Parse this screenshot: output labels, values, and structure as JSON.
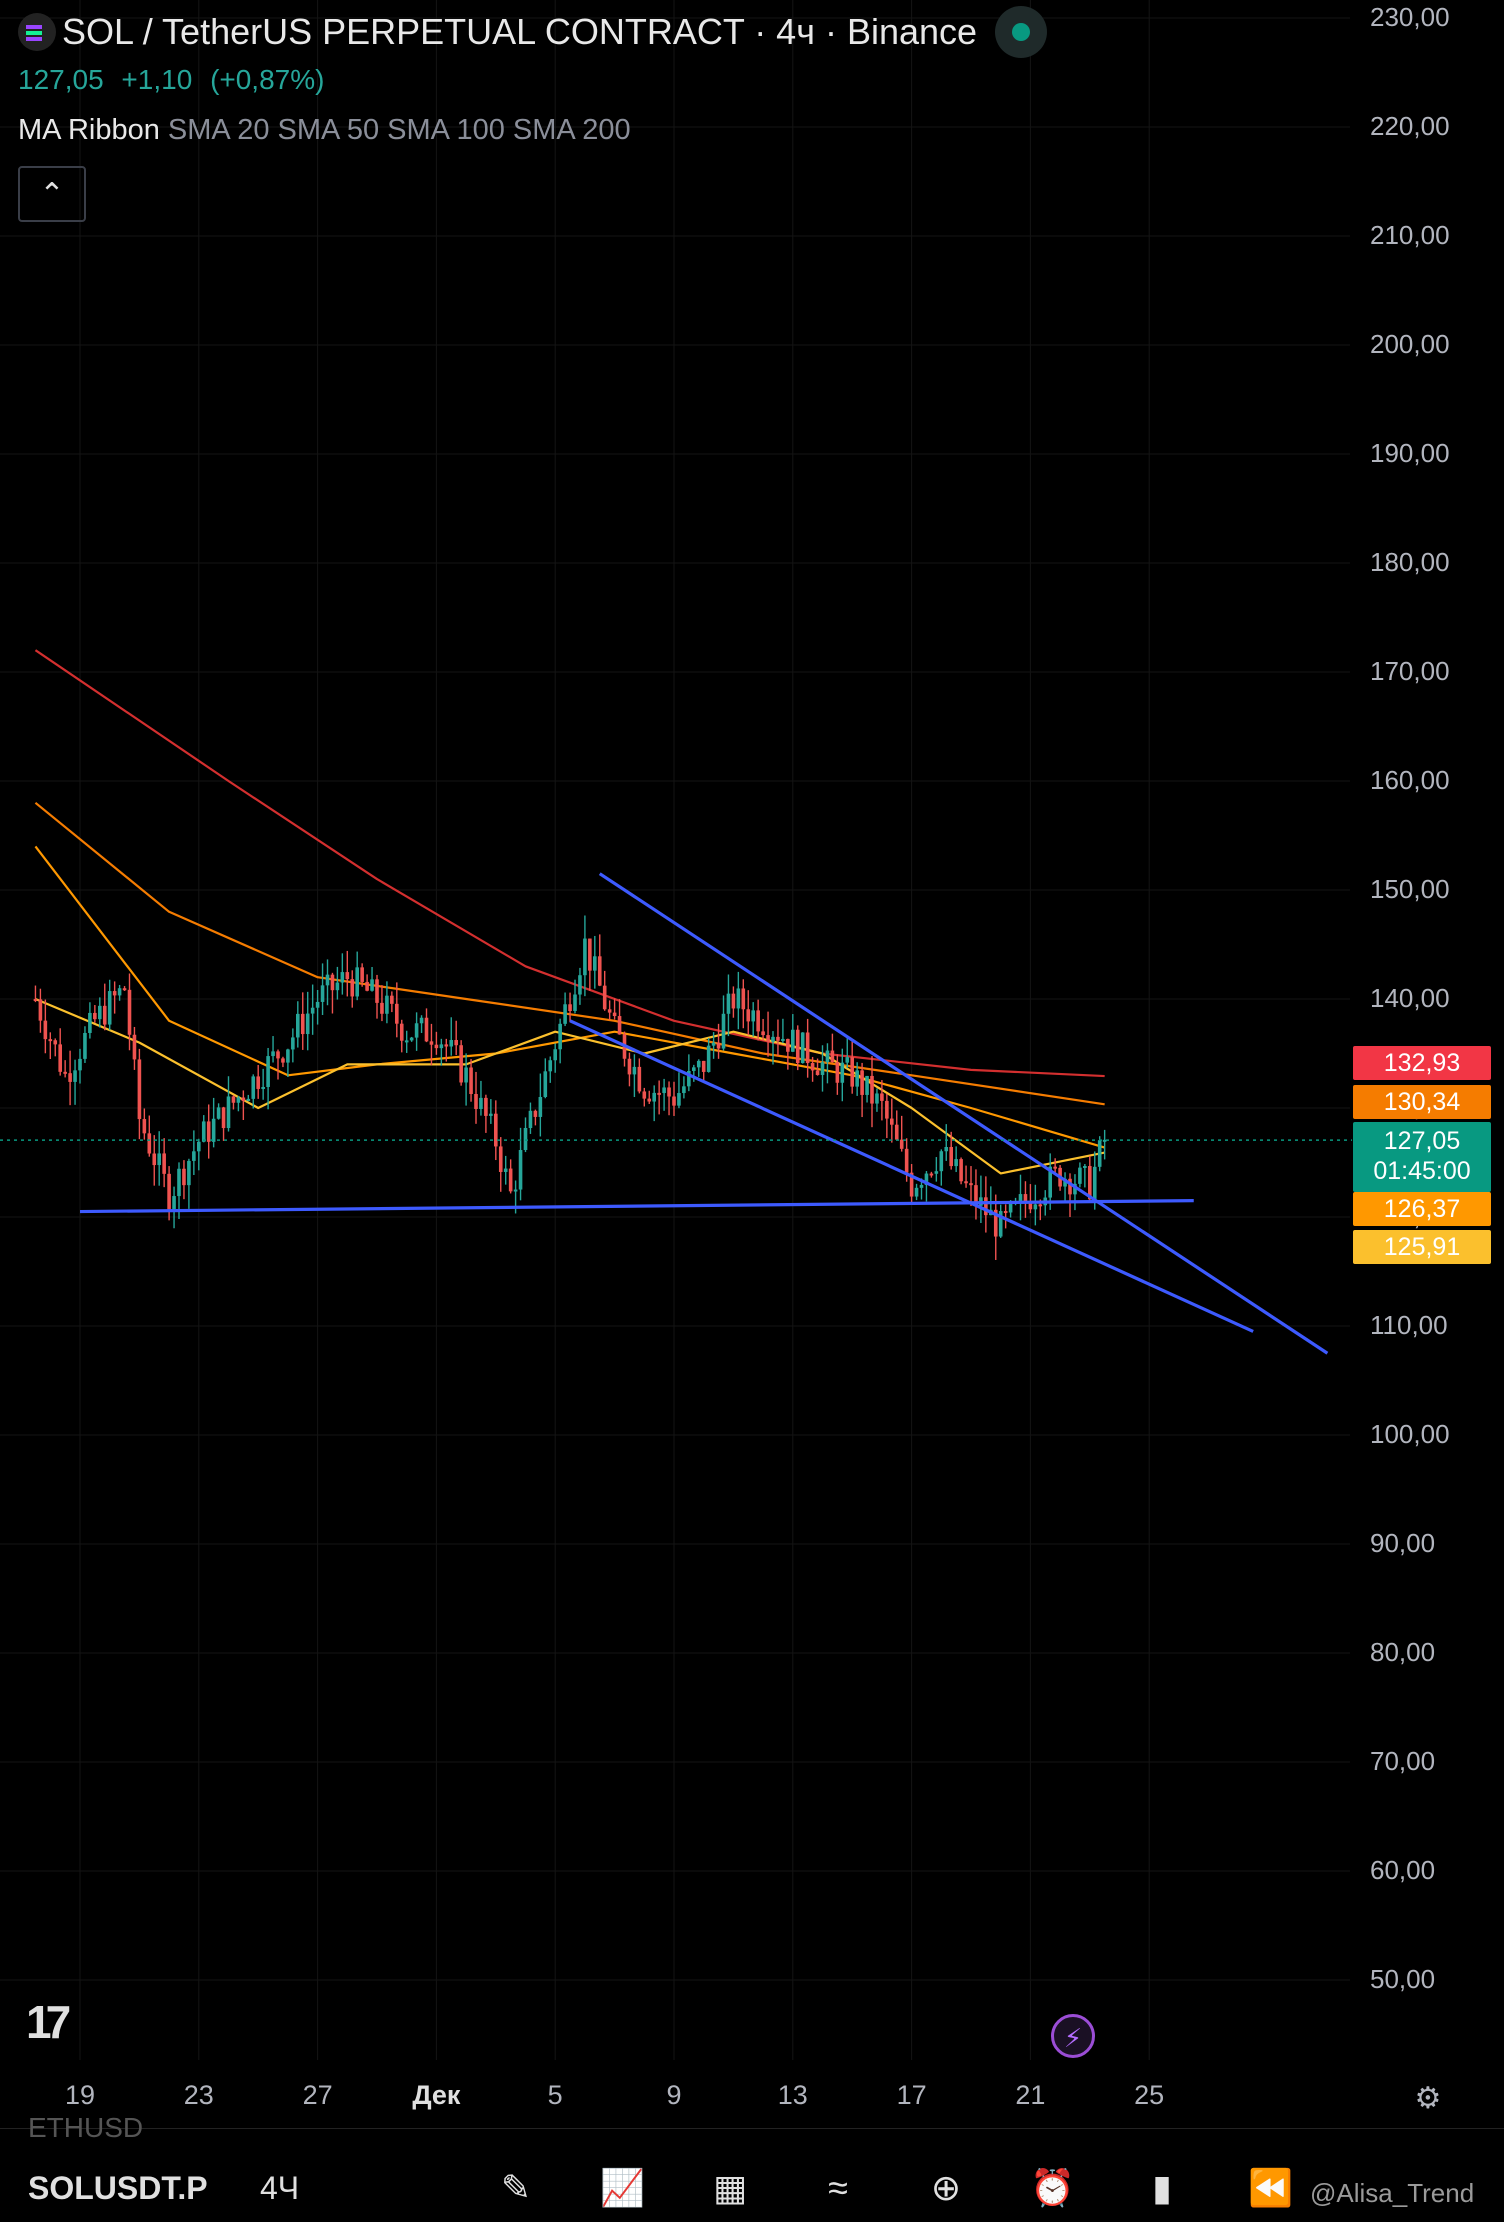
{
  "header": {
    "title": "SOL / TetherUS PERPETUAL CONTRACT · 4ч · Binance",
    "price": "127,05",
    "change": "+1,10",
    "change_pct": "(+0,87%)",
    "indicator_name": "MA Ribbon",
    "indicator_params": "SMA 20 SMA 50 SMA 100 SMA 200",
    "collapse_icon": "chevron-up-icon"
  },
  "y_axis": [
    "230,00",
    "220,00",
    "210,00",
    "200,00",
    "190,00",
    "180,00",
    "170,00",
    "160,00",
    "150,00",
    "140,00",
    "130,00",
    "120,00",
    "110,00",
    "100,00",
    "90,00",
    "80,00",
    "70,00",
    "60,00",
    "50,00"
  ],
  "price_tags": [
    {
      "label": "132,93",
      "color": "#f23645"
    },
    {
      "label": "130,34",
      "color": "#f57c00"
    },
    {
      "label": "127,05",
      "sub": "01:45:00",
      "color": "#089981"
    },
    {
      "label": "126,37",
      "color": "#ff9800"
    },
    {
      "label": "125,91",
      "color": "#fbc02d"
    }
  ],
  "x_axis": [
    "19",
    "23",
    "27",
    "Дек",
    "5",
    "9",
    "13",
    "17",
    "21",
    "25"
  ],
  "bottom_bar": {
    "ghost_symbol": "ETHUSD",
    "symbol": "SOLUSDT.P",
    "timeframe": "4Ч",
    "watermark": "@Alisa_Trend",
    "tools": [
      "draw-icon",
      "indicators-icon",
      "layout-icon",
      "compare-icon",
      "add-icon",
      "alert-icon",
      "candles-icon",
      "replay-icon",
      "binance-icon"
    ]
  },
  "colors": {
    "up": "#26a69a",
    "down": "#ef5350",
    "trendline": "#3d5afe",
    "sma200": "#d32f2f",
    "sma100": "#f57c00",
    "sma50": "#ff9800",
    "sma20": "#fbc02d"
  },
  "chart_data": {
    "type": "candlestick",
    "title": "SOL / TetherUS PERPETUAL CONTRACT · 4ч · Binance",
    "ylim": [
      45,
      232
    ],
    "x": [
      "19",
      "23",
      "27",
      "Дек",
      "5",
      "9",
      "13",
      "17",
      "21",
      "25"
    ],
    "last_price": 127.05,
    "close_path": [
      {
        "day": -1.5,
        "close": 140
      },
      {
        "day": -0.5,
        "close": 133
      },
      {
        "day": 0.5,
        "close": 138
      },
      {
        "day": 1.5,
        "close": 141
      },
      {
        "day": 2,
        "close": 129
      },
      {
        "day": 3,
        "close": 122
      },
      {
        "day": 4,
        "close": 127
      },
      {
        "day": 5,
        "close": 130
      },
      {
        "day": 6,
        "close": 133
      },
      {
        "day": 7,
        "close": 136
      },
      {
        "day": 8,
        "close": 140
      },
      {
        "day": 9,
        "close": 142
      },
      {
        "day": 10,
        "close": 140
      },
      {
        "day": 11,
        "close": 137
      },
      {
        "day": 12,
        "close": 137
      },
      {
        "day": 13,
        "close": 133
      },
      {
        "day": 14,
        "close": 127
      },
      {
        "day": 14.5,
        "close": 122
      },
      {
        "day": 15,
        "close": 127
      },
      {
        "day": 16,
        "close": 136
      },
      {
        "day": 17,
        "close": 145
      },
      {
        "day": 18,
        "close": 137
      },
      {
        "day": 19,
        "close": 132
      },
      {
        "day": 20,
        "close": 131
      },
      {
        "day": 21,
        "close": 134
      },
      {
        "day": 22,
        "close": 140
      },
      {
        "day": 23,
        "close": 138
      },
      {
        "day": 24,
        "close": 136
      },
      {
        "day": 25,
        "close": 134
      },
      {
        "day": 26,
        "close": 133
      },
      {
        "day": 27,
        "close": 130
      },
      {
        "day": 28,
        "close": 123
      },
      {
        "day": 29,
        "close": 126
      },
      {
        "day": 30,
        "close": 122
      },
      {
        "day": 31,
        "close": 119
      },
      {
        "day": 32,
        "close": 122
      },
      {
        "day": 33,
        "close": 124
      },
      {
        "day": 34,
        "close": 123
      },
      {
        "day": 34.5,
        "close": 127.05
      }
    ],
    "series": [
      {
        "name": "SMA 200",
        "values": [
          [
            -1.5,
            172
          ],
          [
            5,
            160
          ],
          [
            10,
            151
          ],
          [
            15,
            143
          ],
          [
            20,
            138
          ],
          [
            25,
            135
          ],
          [
            30,
            133.5
          ],
          [
            34.5,
            132.93
          ]
        ]
      },
      {
        "name": "SMA 100",
        "values": [
          [
            -1.5,
            158
          ],
          [
            3,
            148
          ],
          [
            8,
            142
          ],
          [
            13,
            140
          ],
          [
            18,
            138
          ],
          [
            23,
            135
          ],
          [
            28,
            133
          ],
          [
            34.5,
            130.34
          ]
        ]
      },
      {
        "name": "SMA 50",
        "values": [
          [
            -1.5,
            154
          ],
          [
            3,
            138
          ],
          [
            7,
            133
          ],
          [
            10,
            134
          ],
          [
            14,
            135
          ],
          [
            18,
            137
          ],
          [
            22,
            135
          ],
          [
            26,
            133
          ],
          [
            30,
            130
          ],
          [
            34.5,
            126.37
          ]
        ]
      },
      {
        "name": "SMA 20",
        "values": [
          [
            -1.5,
            140
          ],
          [
            2,
            136
          ],
          [
            6,
            130
          ],
          [
            9,
            134
          ],
          [
            13,
            134
          ],
          [
            16,
            137
          ],
          [
            19,
            135
          ],
          [
            22,
            137
          ],
          [
            25,
            135
          ],
          [
            28,
            130
          ],
          [
            31,
            124
          ],
          [
            34.5,
            125.91
          ]
        ]
      }
    ],
    "trendlines": [
      {
        "from": [
          0,
          120.5
        ],
        "to": [
          37.5,
          121.5
        ]
      },
      {
        "from": [
          16.5,
          138
        ],
        "to": [
          39.5,
          109.5
        ]
      },
      {
        "from": [
          17.5,
          151.5
        ],
        "to": [
          42,
          107.5
        ]
      }
    ]
  }
}
